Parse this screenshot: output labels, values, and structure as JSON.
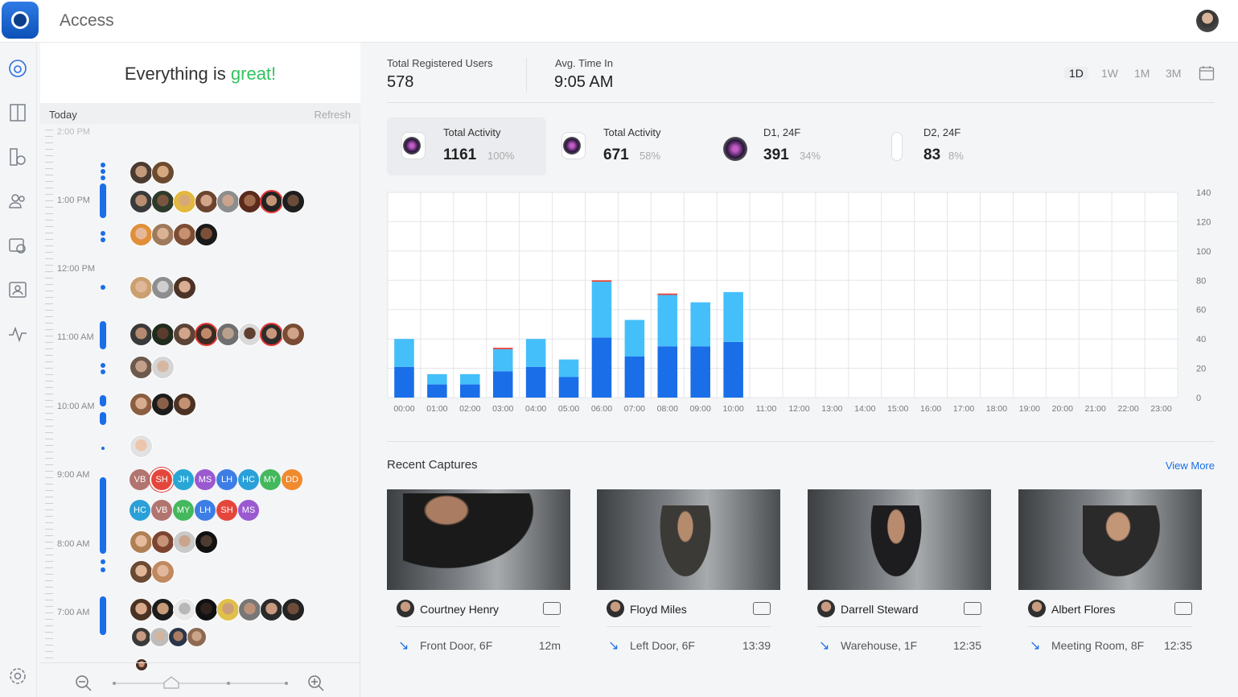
{
  "app": {
    "title": "Access"
  },
  "nav": [
    "sites-icon",
    "doors-icon",
    "devices-icon",
    "users-icon",
    "policies-icon",
    "visitors-icon",
    "activity-icon",
    "settings-icon"
  ],
  "status": {
    "prefix": "Everything is ",
    "highlight": "great!"
  },
  "timeline": {
    "today": "Today",
    "refresh": "Refresh",
    "labels": [
      "2:00 PM",
      "1:00 PM",
      "12:00 PM",
      "11:00 AM",
      "10:00 AM",
      "9:00 AM",
      "8:00 AM",
      "7:00 AM"
    ],
    "initials_row1": [
      "VB",
      "SH",
      "JH",
      "MS",
      "LH",
      "HC",
      "MY",
      "DD"
    ],
    "initials_row2": [
      "HC",
      "VB",
      "MY",
      "LH",
      "SH",
      "MS"
    ],
    "initial_colors": {
      "VB": "#b1746f",
      "SH": "#e5463b",
      "JH": "#28a6d6",
      "MS": "#9b59d0",
      "LH": "#3d7ee6",
      "HC": "#2aa0d8",
      "MY": "#43b85c",
      "DD": "#ef8a2f"
    }
  },
  "stats": {
    "users_label": "Total Registered Users",
    "users_value": "578",
    "avg_label": "Avg. Time In",
    "avg_value": "9:05 AM",
    "ranges": [
      "1D",
      "1W",
      "1M",
      "3M"
    ],
    "active_range": "1D"
  },
  "cards": [
    {
      "label": "Total Activity",
      "value": "1161",
      "pct": "100%",
      "selected": true
    },
    {
      "label": "Total Activity",
      "value": "671",
      "pct": "58%",
      "selected": false
    },
    {
      "label": "D1, 24F",
      "value": "391",
      "pct": "34%",
      "selected": false
    },
    {
      "label": "D2, 24F",
      "value": "83",
      "pct": "8%",
      "selected": false
    }
  ],
  "chart_data": {
    "type": "bar",
    "categories": [
      "00:00",
      "01:00",
      "02:00",
      "03:00",
      "04:00",
      "05:00",
      "06:00",
      "07:00",
      "08:00",
      "09:00",
      "10:00",
      "11:00",
      "12:00",
      "13:00",
      "14:00",
      "15:00",
      "16:00",
      "17:00",
      "18:00",
      "19:00",
      "20:00",
      "21:00",
      "22:00",
      "23:00"
    ],
    "series": [
      {
        "values": [
          21,
          9,
          9,
          18,
          21,
          14,
          41,
          28,
          35,
          35,
          38,
          0,
          0,
          0,
          0,
          0,
          0,
          0,
          0,
          0,
          0,
          0,
          0,
          0
        ],
        "color": "#1a6ee8"
      },
      {
        "values": [
          19,
          7,
          7,
          15,
          19,
          12,
          38,
          25,
          35,
          30,
          34,
          0,
          0,
          0,
          0,
          0,
          0,
          0,
          0,
          0,
          0,
          0,
          0,
          0
        ],
        "color": "#45bffa"
      },
      {
        "values": [
          0,
          0,
          0,
          1,
          0,
          0,
          1,
          0,
          1,
          0,
          0,
          0,
          0,
          0,
          0,
          0,
          0,
          0,
          0,
          0,
          0,
          0,
          0,
          0
        ],
        "color": "#e5463b"
      }
    ],
    "stacked": true,
    "ylim": [
      0,
      140
    ],
    "yticks": [
      0,
      20,
      40,
      60,
      80,
      100,
      120,
      140
    ],
    "grid": true
  },
  "captures": {
    "title": "Recent Captures",
    "view_more": "View More",
    "items": [
      {
        "name": "Courtney Henry",
        "location": "Front Door, 6F",
        "time": "12m"
      },
      {
        "name": "Floyd Miles",
        "location": "Left Door, 6F",
        "time": "13:39"
      },
      {
        "name": "Darrell Steward",
        "location": "Warehouse, 1F",
        "time": "12:35"
      },
      {
        "name": "Albert Flores",
        "location": "Meeting Room, 8F",
        "time": "12:35"
      }
    ]
  }
}
